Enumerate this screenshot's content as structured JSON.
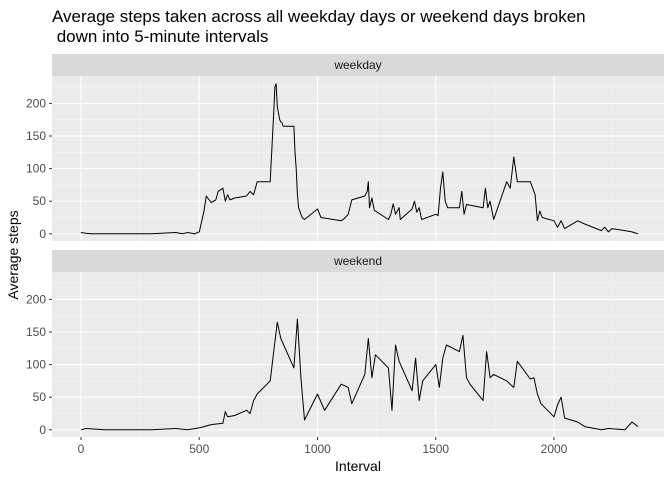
{
  "chart_data": {
    "type": "line",
    "title_lines": [
      "Average steps taken across all weekday days or weekend days broken",
      " down into 5-minute intervals"
    ],
    "xlabel": "Interval",
    "ylabel": "Average steps",
    "xlim": [
      0,
      2355
    ],
    "ylim": [
      0,
      230
    ],
    "x_ticks": [
      0,
      500,
      1000,
      1500,
      2000
    ],
    "y_ticks": [
      0,
      50,
      100,
      150,
      200
    ],
    "grid": true,
    "line_color": "#000000",
    "panel_background": "#ebebeb",
    "strip_background": "#d9d9d9",
    "panels": [
      {
        "strip": "weekday",
        "x": [
          0,
          20,
          40,
          60,
          100,
          200,
          300,
          400,
          430,
          450,
          480,
          500,
          520,
          530,
          550,
          570,
          580,
          600,
          610,
          620,
          630,
          650,
          700,
          715,
          730,
          745,
          800,
          815,
          820,
          825,
          830,
          835,
          840,
          845,
          850,
          855,
          900,
          905,
          910,
          915,
          920,
          935,
          945,
          1000,
          1015,
          1100,
          1115,
          1130,
          1145,
          1200,
          1210,
          1215,
          1220,
          1230,
          1240,
          1300,
          1310,
          1320,
          1330,
          1345,
          1350,
          1400,
          1410,
          1420,
          1430,
          1440,
          1500,
          1510,
          1520,
          1530,
          1540,
          1550,
          1600,
          1610,
          1620,
          1630,
          1700,
          1710,
          1720,
          1730,
          1745,
          1800,
          1815,
          1830,
          1845,
          1900,
          1920,
          1930,
          1940,
          1950,
          2000,
          2015,
          2030,
          2045,
          2100,
          2130,
          2200,
          2215,
          2230,
          2245,
          2300,
          2330,
          2355
        ],
        "y": [
          2,
          1,
          0,
          0,
          0,
          0,
          0,
          2,
          0,
          2,
          0,
          3,
          35,
          58,
          48,
          52,
          65,
          70,
          50,
          60,
          52,
          55,
          58,
          65,
          60,
          80,
          80,
          185,
          225,
          230,
          195,
          185,
          175,
          172,
          170,
          165,
          165,
          125,
          100,
          60,
          40,
          25,
          22,
          38,
          25,
          20,
          24,
          30,
          52,
          58,
          65,
          80,
          40,
          55,
          36,
          22,
          30,
          46,
          30,
          40,
          22,
          38,
          50,
          33,
          40,
          22,
          30,
          28,
          70,
          95,
          50,
          40,
          40,
          65,
          30,
          45,
          40,
          70,
          40,
          50,
          22,
          80,
          70,
          118,
          80,
          80,
          60,
          20,
          35,
          25,
          20,
          10,
          20,
          8,
          20,
          15,
          5,
          10,
          3,
          8,
          5,
          3,
          0
        ]
      },
      {
        "strip": "weekend",
        "x": [
          0,
          20,
          100,
          200,
          300,
          400,
          450,
          500,
          520,
          550,
          600,
          610,
          620,
          650,
          700,
          715,
          730,
          745,
          800,
          815,
          830,
          845,
          900,
          915,
          930,
          945,
          1000,
          1030,
          1100,
          1130,
          1145,
          1200,
          1215,
          1230,
          1245,
          1300,
          1315,
          1330,
          1345,
          1400,
          1415,
          1430,
          1445,
          1500,
          1515,
          1530,
          1545,
          1600,
          1615,
          1630,
          1645,
          1700,
          1715,
          1730,
          1745,
          1800,
          1815,
          1830,
          1845,
          1900,
          1915,
          1930,
          1945,
          2000,
          2015,
          2030,
          2045,
          2100,
          2130,
          2200,
          2230,
          2300,
          2330,
          2355
        ],
        "y": [
          0,
          2,
          0,
          0,
          0,
          2,
          0,
          3,
          5,
          8,
          10,
          28,
          20,
          22,
          30,
          25,
          45,
          55,
          75,
          120,
          165,
          140,
          95,
          170,
          80,
          15,
          55,
          30,
          70,
          65,
          40,
          85,
          140,
          80,
          115,
          95,
          30,
          130,
          105,
          60,
          110,
          45,
          75,
          100,
          65,
          110,
          130,
          120,
          145,
          80,
          70,
          45,
          120,
          80,
          85,
          75,
          70,
          65,
          105,
          78,
          80,
          55,
          40,
          20,
          38,
          50,
          18,
          12,
          5,
          0,
          2,
          0,
          12,
          5
        ]
      }
    ]
  }
}
